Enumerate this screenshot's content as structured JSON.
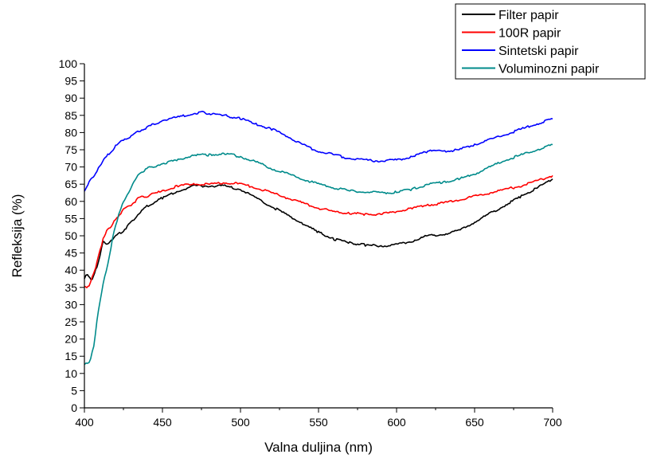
{
  "chart_data": {
    "type": "line",
    "xlabel": "Valna duljina (nm)",
    "ylabel": "Refleksija (%)",
    "xlim": [
      400,
      700
    ],
    "ylim": [
      0,
      100
    ],
    "xticks": [
      400,
      450,
      500,
      550,
      600,
      650,
      700
    ],
    "yticks": [
      0,
      5,
      10,
      15,
      20,
      25,
      30,
      35,
      40,
      45,
      50,
      55,
      60,
      65,
      70,
      75,
      80,
      85,
      90,
      95,
      100
    ],
    "grid": false,
    "legend_position": "top-right",
    "series": [
      {
        "name": "Filter papir",
        "color": "#000000",
        "x": [
          400,
          402,
          405,
          408,
          410,
          412,
          415,
          418,
          420,
          425,
          430,
          435,
          440,
          450,
          460,
          470,
          480,
          490,
          500,
          510,
          520,
          530,
          540,
          550,
          560,
          570,
          580,
          590,
          600,
          610,
          620,
          630,
          640,
          650,
          660,
          670,
          680,
          690,
          700
        ],
        "y": [
          37.5,
          39,
          37,
          41,
          44,
          48.5,
          47.5,
          49,
          50,
          51.5,
          54,
          56.5,
          58.5,
          61,
          63,
          64.5,
          64.5,
          64.5,
          63.5,
          61,
          58.5,
          56,
          53.5,
          51,
          49,
          48,
          47.3,
          47,
          47.5,
          48.5,
          50,
          50.5,
          51.5,
          54,
          56.5,
          59,
          61.5,
          64,
          66.5
        ]
      },
      {
        "name": "100R papir",
        "color": "#ff0000",
        "x": [
          400,
          403,
          405,
          408,
          410,
          412,
          415,
          418,
          420,
          425,
          430,
          435,
          440,
          450,
          460,
          470,
          480,
          490,
          500,
          510,
          520,
          530,
          540,
          550,
          560,
          570,
          580,
          590,
          600,
          610,
          620,
          630,
          640,
          650,
          660,
          670,
          680,
          690,
          700
        ],
        "y": [
          35,
          35.5,
          38,
          42,
          46,
          49,
          52,
          53,
          55,
          57.5,
          59,
          61,
          61.5,
          63,
          64.5,
          65,
          65,
          65.5,
          65,
          64,
          62.5,
          61,
          59.5,
          58,
          57,
          56.5,
          56.3,
          56.3,
          57,
          58,
          59,
          59.5,
          60.5,
          61.5,
          62.5,
          63.5,
          64.5,
          66,
          67.5
        ]
      },
      {
        "name": "Sintetski papir",
        "color": "#0000ff",
        "x": [
          400,
          403,
          405,
          408,
          410,
          415,
          420,
          425,
          430,
          435,
          440,
          450,
          460,
          470,
          475,
          480,
          490,
          500,
          510,
          520,
          530,
          540,
          550,
          560,
          570,
          580,
          590,
          600,
          610,
          620,
          625,
          630,
          640,
          650,
          660,
          670,
          680,
          690,
          700
        ],
        "y": [
          63,
          65.5,
          67,
          68.5,
          70.5,
          73.5,
          76,
          78,
          79,
          80.5,
          81.5,
          83.5,
          84.5,
          85.5,
          86,
          85.5,
          85,
          84,
          82.5,
          81,
          79,
          76.5,
          74.5,
          73.5,
          72.5,
          72,
          71.7,
          72,
          73,
          74.5,
          75,
          74.5,
          75,
          76.5,
          78,
          79.5,
          81,
          82.5,
          84
        ]
      },
      {
        "name": "Voluminozni papir",
        "color": "#008b8b",
        "x": [
          400,
          402,
          404,
          406,
          408,
          410,
          412,
          414,
          416,
          418,
          420,
          422,
          425,
          430,
          435,
          440,
          450,
          460,
          470,
          480,
          490,
          500,
          510,
          520,
          530,
          540,
          550,
          560,
          570,
          580,
          590,
          600,
          610,
          620,
          630,
          640,
          650,
          660,
          670,
          680,
          690,
          700
        ],
        "y": [
          12.5,
          13,
          14,
          18,
          25,
          31,
          36,
          40,
          44,
          49,
          53,
          56,
          60,
          64,
          68,
          69.5,
          71,
          72,
          73.5,
          73.5,
          74,
          73,
          71.5,
          69.5,
          68,
          66.5,
          65,
          64,
          63,
          62.7,
          62.5,
          62.7,
          63.5,
          65,
          65.5,
          66.5,
          68,
          70,
          72,
          73.5,
          75,
          76.5
        ]
      }
    ]
  }
}
